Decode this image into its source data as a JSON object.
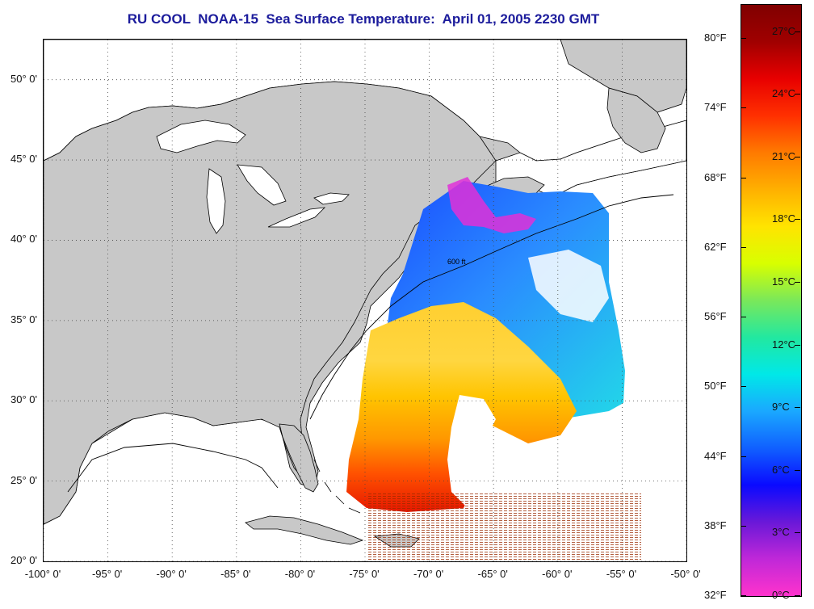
{
  "title": "RU COOL  NOAA-15  Sea Surface Temperature:  April 01, 2005 2230 GMT",
  "map": {
    "lon_min": -100,
    "lon_max": -50,
    "lat_min": 20,
    "lat_max": 52.5,
    "lon_labels": [
      "-100° 0'",
      "-95° 0'",
      "-90° 0'",
      "-85° 0'",
      "-80° 0'",
      "-75° 0'",
      "-70° 0'",
      "-65° 0'",
      "-60° 0'",
      "-55° 0'",
      "-50° 0'"
    ],
    "lat_labels": [
      "50° 0'",
      "45° 0'",
      "40° 0'",
      "35° 0'",
      "30° 0'",
      "25° 0'",
      "20° 0'"
    ],
    "isobath_label": "600 ft",
    "colors": {
      "land": "#c8c8c8",
      "ocean": "#ffffff",
      "grid": "#444444"
    }
  },
  "colorbar": {
    "fahrenheit_labels": [
      "80°F",
      "74°F",
      "68°F",
      "62°F",
      "56°F",
      "50°F",
      "44°F",
      "38°F",
      "32°F"
    ],
    "celsius_labels": [
      "27°C",
      "24°C",
      "21°C",
      "18°C",
      "15°C",
      "12°C",
      "9°C",
      "6°C",
      "3°C",
      "0°C"
    ],
    "range_c": [
      0,
      28.3
    ],
    "gradient": [
      "#ff33cc",
      "#c028d8",
      "#6a18d8",
      "#0a0aff",
      "#1060ff",
      "#1aa8ff",
      "#00e8e8",
      "#22e8a0",
      "#7ae85a",
      "#d8ff00",
      "#ffe400",
      "#ffb000",
      "#ff7a00",
      "#ff3000",
      "#e80000",
      "#a00000",
      "#800000"
    ]
  }
}
